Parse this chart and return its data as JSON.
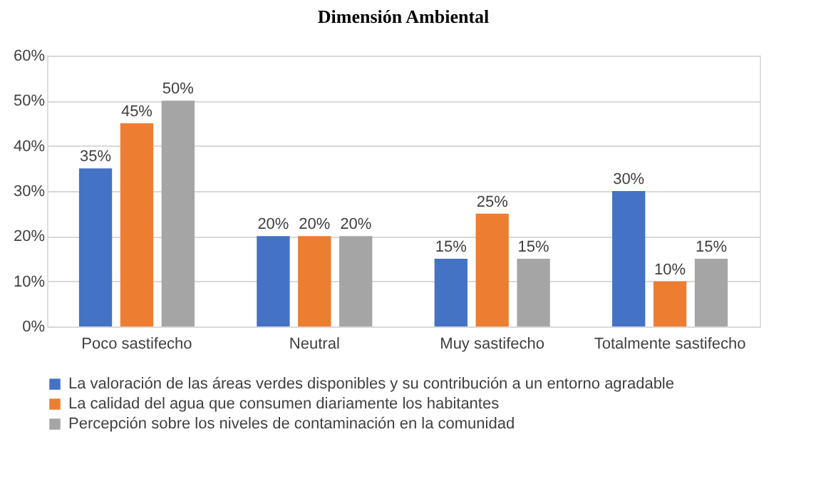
{
  "chart_data": {
    "type": "bar",
    "title": "Dimensión Ambiental",
    "categories": [
      "Poco sastifecho",
      "Neutral",
      "Muy sastifecho",
      "Totalmente sastifecho"
    ],
    "series": [
      {
        "name": "La valoración de las áreas verdes disponibles y su contribución a un entorno agradable",
        "color": "#4472c4",
        "values": [
          35,
          20,
          15,
          30
        ],
        "value_labels": [
          "35%",
          "20%",
          "15%",
          "30%"
        ]
      },
      {
        "name": "La calidad del agua que consumen diariamente los habitantes",
        "color": "#ed7d31",
        "values": [
          45,
          20,
          25,
          10
        ],
        "value_labels": [
          "45%",
          "20%",
          "25%",
          "10%"
        ]
      },
      {
        "name": "Percepción sobre los niveles de contaminación en la comunidad",
        "color": "#a5a5a5",
        "values": [
          50,
          20,
          15,
          15
        ],
        "value_labels": [
          "50%",
          "20%",
          "15%",
          "15%"
        ]
      }
    ],
    "ylim": [
      0,
      60
    ],
    "yticks": [
      {
        "value": 0,
        "label": "0%"
      },
      {
        "value": 10,
        "label": "10%"
      },
      {
        "value": 20,
        "label": "20%"
      },
      {
        "value": 30,
        "label": "30%"
      },
      {
        "value": 40,
        "label": "40%"
      },
      {
        "value": 50,
        "label": "50%"
      },
      {
        "value": 60,
        "label": "60%"
      }
    ],
    "grid": "y",
    "legend": "bottom"
  }
}
